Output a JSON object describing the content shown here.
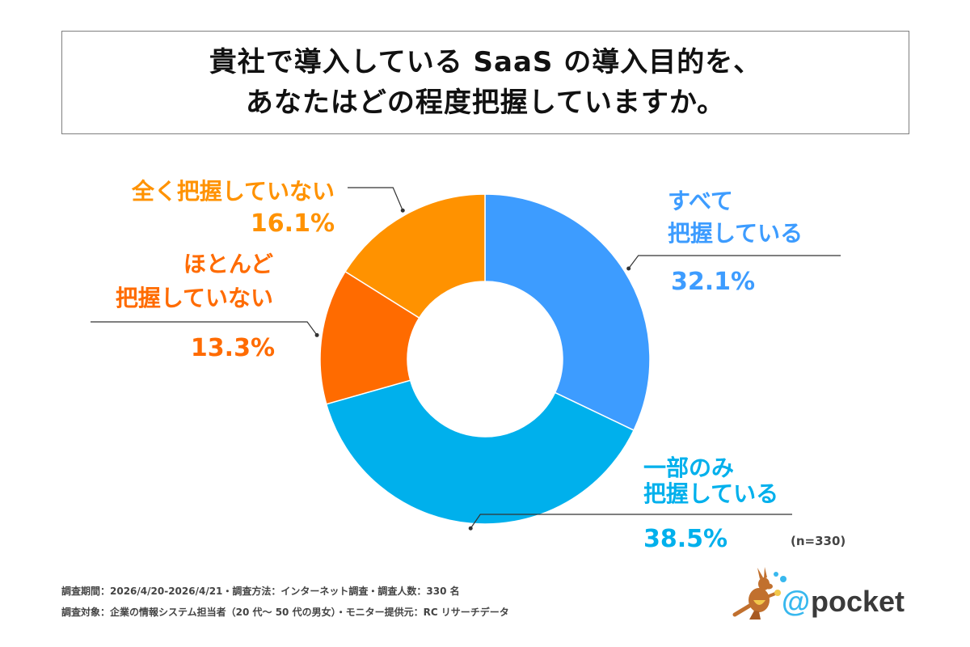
{
  "title": {
    "line1": "貴社で導入している SaaS の導入目的を、",
    "line2": "あなたはどの程度把握していますか。"
  },
  "chart_data": {
    "type": "pie",
    "donut": true,
    "title": "貴社で導入している SaaS の導入目的を、あなたはどの程度把握していますか。",
    "slices": [
      {
        "label": [
          "すべて",
          "把握している"
        ],
        "value": 32.1,
        "display": "32.1%",
        "color": "#3d9cff"
      },
      {
        "label": [
          "一部のみ",
          "把握している"
        ],
        "value": 38.5,
        "display": "38.5%",
        "color": "#00b0ec"
      },
      {
        "label": [
          "ほとんど",
          "把握していない"
        ],
        "value": 13.3,
        "display": "13.3%",
        "color": "#ff6b00"
      },
      {
        "label": [
          "全く把握していない"
        ],
        "value": 16.1,
        "display": "16.1%",
        "color": "#ff9200"
      }
    ],
    "n_label": "(n=330)"
  },
  "footer": {
    "line1": "調査期間：2026/4/20-2026/4/21・調査方法：インターネット調査・調査人数：330 名",
    "line2": "調査対象：企業の情報システム担当者（20 代〜 50 代の男女）・モニター提供元：RC リサーチデータ"
  },
  "logo": {
    "text": "@pocket",
    "icon": "kangaroo-icon"
  }
}
